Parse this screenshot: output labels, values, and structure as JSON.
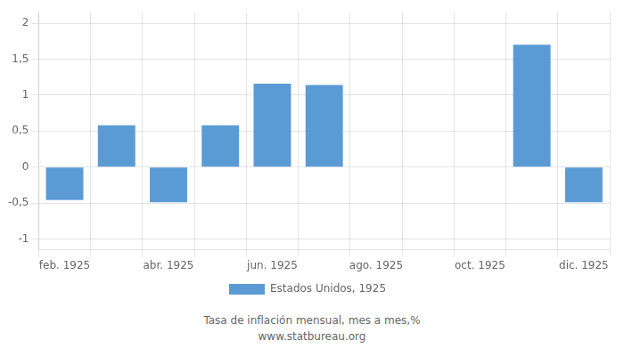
{
  "chart_data": {
    "type": "bar",
    "categories": [
      "feb. 1925",
      null,
      "abr. 1925",
      null,
      "jun. 1925",
      null,
      "ago. 1925",
      null,
      "oct. 1925",
      null,
      "dic. 1925"
    ],
    "series": [
      {
        "name": "Estados Unidos, 1925",
        "color": "#5b9bd5",
        "values": [
          -0.46,
          0.58,
          -0.49,
          0.58,
          1.16,
          1.14,
          0,
          0,
          0,
          1.7,
          -0.49
        ]
      }
    ],
    "ylim": [
      -1.15,
      2.15
    ],
    "yticks": [
      -1,
      {
        "value": -0.5,
        "label": "-0,5"
      },
      0,
      {
        "value": 0.5,
        "label": "0,5"
      },
      1,
      {
        "value": 1.5,
        "label": "1,5"
      },
      2
    ],
    "grid": true,
    "legend": "bottom",
    "annotations": [
      "Tasa de inflación mensual, mes a mes,%",
      "www.statbureau.org"
    ]
  }
}
